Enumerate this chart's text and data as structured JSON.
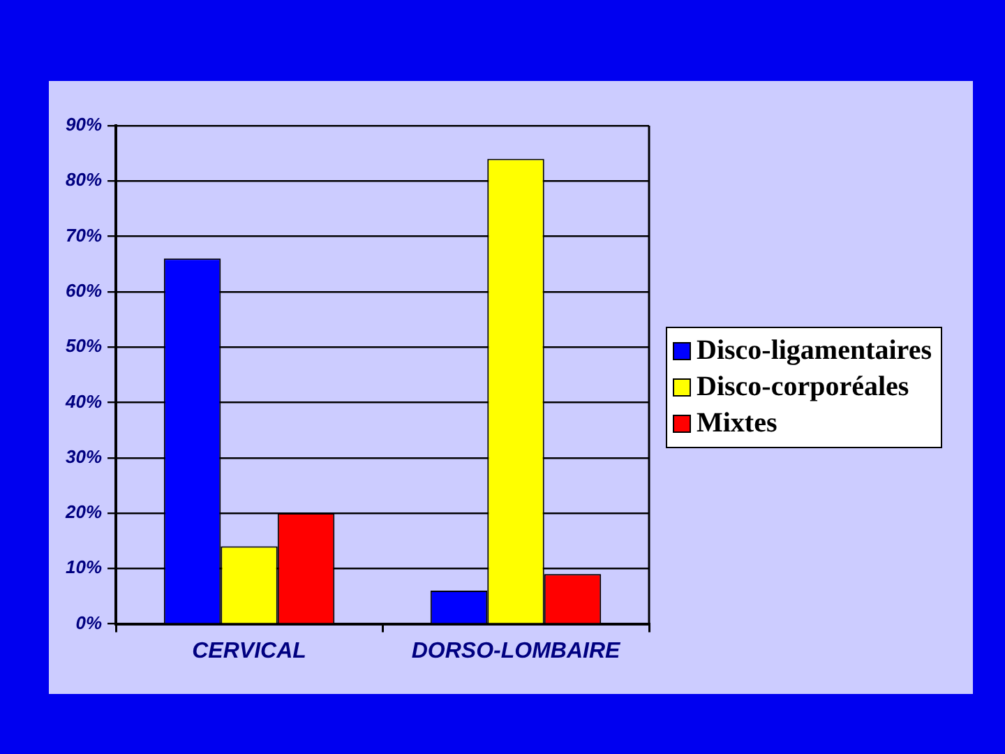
{
  "chart_data": {
    "type": "bar",
    "categories": [
      "CERVICAL",
      "DORSO-LOMBAIRE"
    ],
    "series": [
      {
        "name": "Disco-ligamentaires",
        "color": "#0000ff",
        "values": [
          66,
          6
        ]
      },
      {
        "name": "Disco-corporéales",
        "color": "#ffff00",
        "values": [
          14,
          84
        ]
      },
      {
        "name": "Mixtes",
        "color": "#ff0000",
        "values": [
          20,
          9
        ]
      }
    ],
    "ylim": [
      0,
      90
    ],
    "yticks": [
      {
        "value": 0,
        "label": "0%"
      },
      {
        "value": 10,
        "label": "10%"
      },
      {
        "value": 20,
        "label": "20%"
      },
      {
        "value": 30,
        "label": "30%"
      },
      {
        "value": 40,
        "label": "40%"
      },
      {
        "value": 50,
        "label": "50%"
      },
      {
        "value": 60,
        "label": "60%"
      },
      {
        "value": 70,
        "label": "70%"
      },
      {
        "value": 80,
        "label": "80%"
      },
      {
        "value": 90,
        "label": "90%"
      }
    ],
    "grid": "y",
    "legend": "right"
  }
}
